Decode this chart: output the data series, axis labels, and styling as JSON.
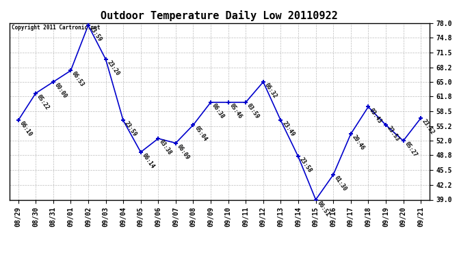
{
  "title": "Outdoor Temperature Daily Low 20110922",
  "copyright_text": "Copyright 2011 Cartronic.net",
  "dates": [
    "08/29",
    "08/30",
    "08/31",
    "09/01",
    "09/02",
    "09/03",
    "09/04",
    "09/05",
    "09/06",
    "09/07",
    "09/08",
    "09/09",
    "09/10",
    "09/11",
    "09/12",
    "09/13",
    "09/14",
    "09/15",
    "09/16",
    "09/17",
    "09/18",
    "09/19",
    "09/20",
    "09/21"
  ],
  "values": [
    56.5,
    62.5,
    65.0,
    67.5,
    77.5,
    70.0,
    56.5,
    49.5,
    52.5,
    51.5,
    55.5,
    60.5,
    60.5,
    60.5,
    65.0,
    56.5,
    48.5,
    39.0,
    44.5,
    53.5,
    59.5,
    55.5,
    52.0,
    57.0
  ],
  "times": [
    "06:10",
    "05:22",
    "00:00",
    "06:53",
    "23:59",
    "23:20",
    "23:59",
    "06:14",
    "03:38",
    "06:09",
    "05:04",
    "06:38",
    "05:46",
    "03:59",
    "06:32",
    "23:49",
    "23:58",
    "06:51",
    "01:30",
    "20:46",
    "03:43",
    "23:53",
    "05:27",
    "23:52"
  ],
  "line_color": "#0000cc",
  "marker_color": "#0000cc",
  "background_color": "#ffffff",
  "grid_color": "#bbbbbb",
  "ylim": [
    39.0,
    78.0
  ],
  "yticks": [
    39.0,
    42.2,
    45.5,
    48.8,
    52.0,
    55.2,
    58.5,
    61.8,
    65.0,
    68.2,
    71.5,
    74.8,
    78.0
  ],
  "title_fontsize": 11,
  "annotation_fontsize": 6,
  "tick_fontsize": 7
}
